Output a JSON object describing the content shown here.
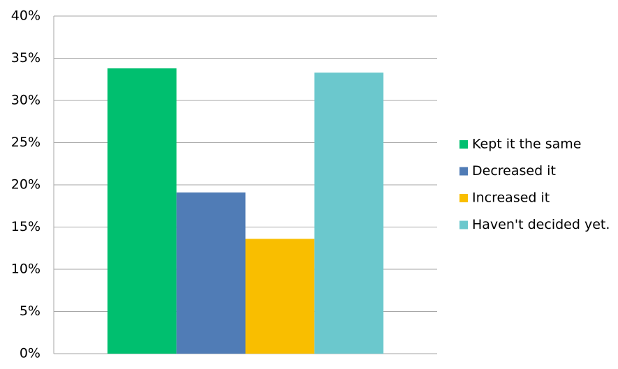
{
  "chart_data": {
    "type": "bar",
    "categories": [
      null
    ],
    "series": [
      {
        "name": "Kept it the same",
        "color": "#00bf6f",
        "values": [
          33.8
        ]
      },
      {
        "name": "Decreased it",
        "color": "#507cb6",
        "values": [
          19.1
        ]
      },
      {
        "name": "Increased it",
        "color": "#f9be00",
        "values": [
          13.6
        ]
      },
      {
        "name": "Haven't decided yet.",
        "color": "#6bc8cd",
        "values": [
          33.3
        ]
      }
    ],
    "ylim": [
      0,
      40
    ],
    "yticks": [
      {
        "value": 0,
        "label": "0%"
      },
      {
        "value": 5,
        "label": "5%"
      },
      {
        "value": 10,
        "label": "10%"
      },
      {
        "value": 15,
        "label": "15%"
      },
      {
        "value": 20,
        "label": "20%"
      },
      {
        "value": 25,
        "label": "25%"
      },
      {
        "value": 30,
        "label": "30%"
      },
      {
        "value": 35,
        "label": "35%"
      },
      {
        "value": 40,
        "label": "40%"
      }
    ],
    "grid": true,
    "legend": "right"
  }
}
